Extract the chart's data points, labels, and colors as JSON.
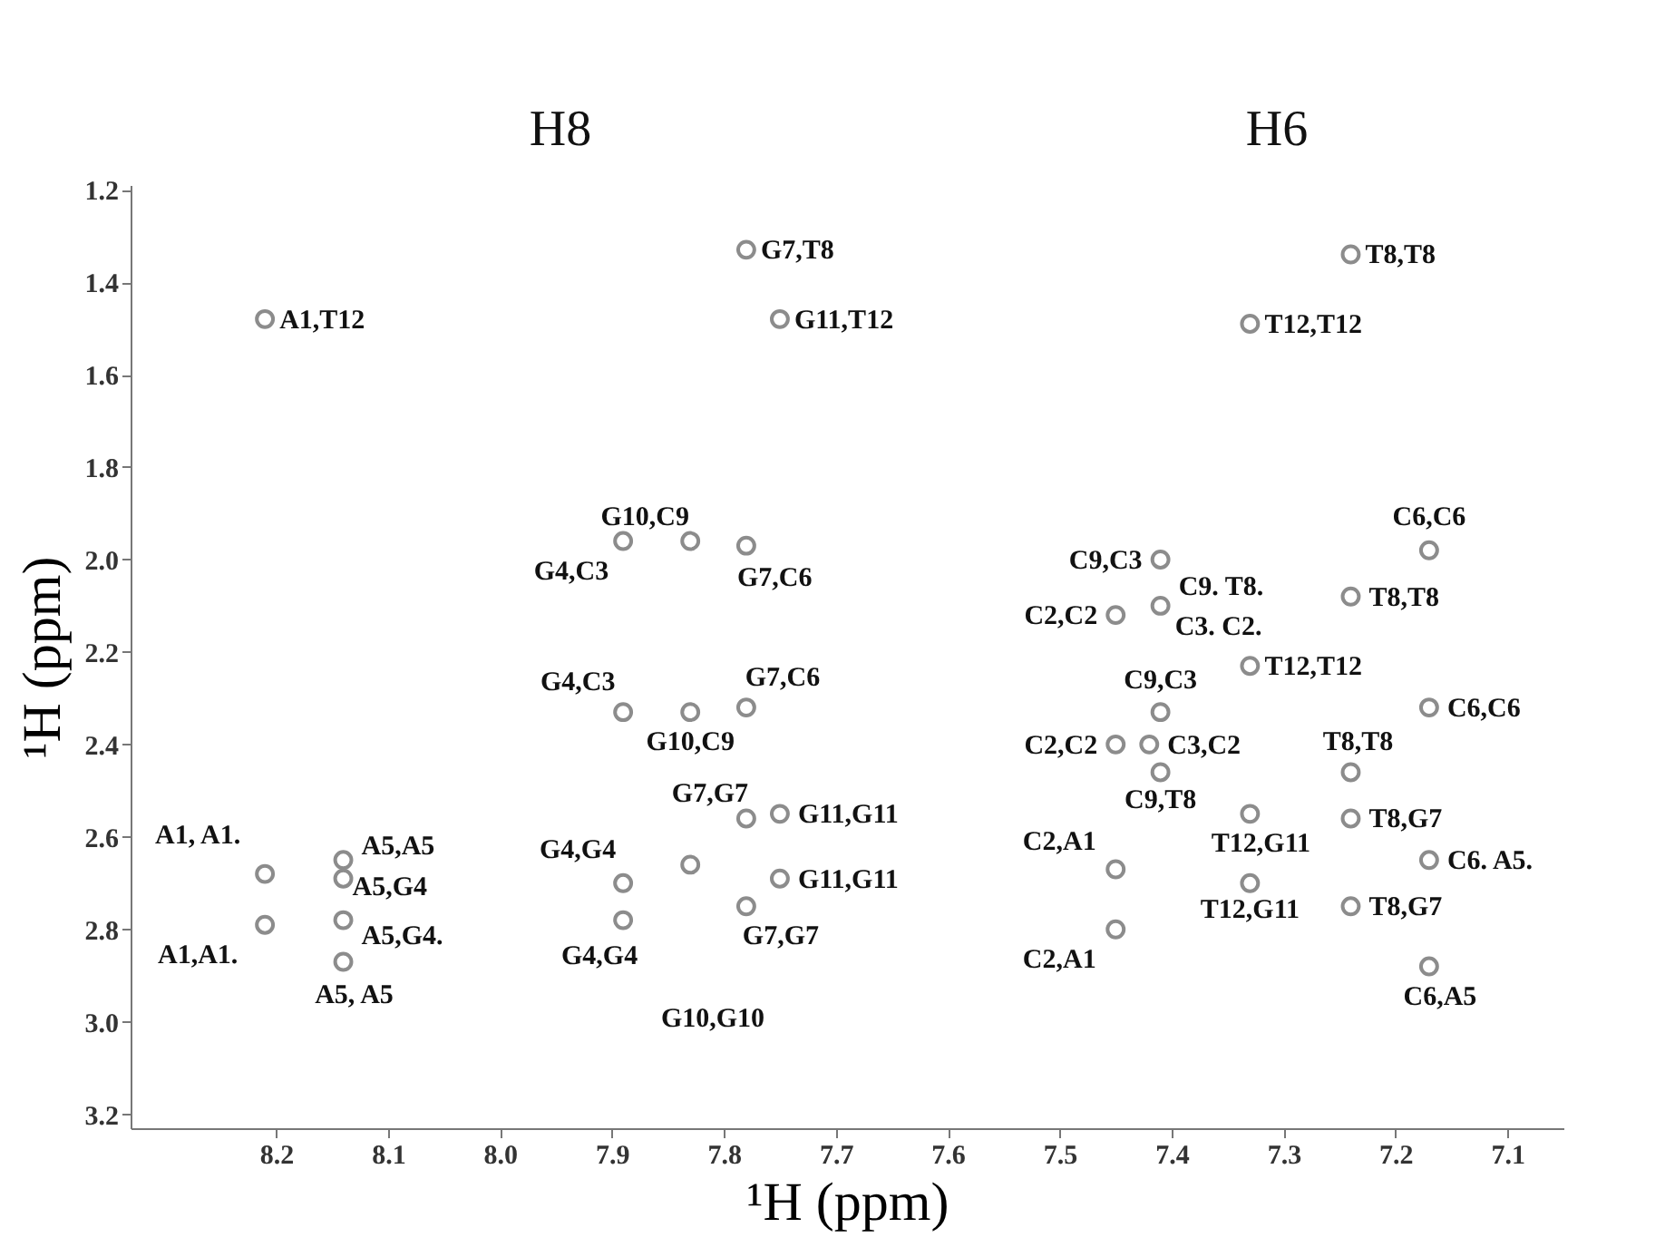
{
  "chart_data": {
    "type": "scatter",
    "xlabel": "¹H (ppm)",
    "ylabel": "¹H (ppm)",
    "xlim": [
      8.33,
      7.05
    ],
    "ylim": [
      3.23,
      1.19
    ],
    "xticks": [
      8.2,
      8.1,
      {
        "value": 8.0,
        "label": "8.0"
      },
      7.9,
      7.8,
      7.7,
      7.6,
      7.5,
      7.4,
      7.3,
      7.2,
      7.1
    ],
    "yticks": [
      1.2,
      1.4,
      1.6,
      1.8,
      {
        "value": 2.0,
        "label": "2.0"
      },
      2.2,
      2.4,
      2.6,
      2.8,
      {
        "value": 3.0,
        "label": "3.0"
      },
      3.2
    ],
    "grid": false,
    "marker": "circle",
    "series": [
      {
        "color": "#8c8c8c",
        "x": [
          8.21,
          7.78,
          7.75,
          7.89,
          7.83,
          7.78,
          7.24,
          7.33,
          7.41,
          7.17,
          7.45,
          7.41,
          7.24,
          7.33,
          7.17,
          7.41,
          7.45,
          7.42,
          7.41,
          7.24,
          7.33,
          7.24,
          7.17,
          7.45,
          7.33,
          7.24,
          7.45,
          7.17,
          7.89,
          7.83,
          7.78,
          7.78,
          7.75,
          8.21,
          8.14,
          8.14,
          7.89,
          7.83,
          7.75,
          8.21,
          8.14,
          7.89,
          7.78,
          8.14
        ],
        "values": [
          1.48,
          1.33,
          1.48,
          1.96,
          1.96,
          1.97,
          1.34,
          1.49,
          2.0,
          1.98,
          2.12,
          2.1,
          2.08,
          2.23,
          2.32,
          2.33,
          2.4,
          2.4,
          2.46,
          2.46,
          2.55,
          2.56,
          2.65,
          2.67,
          2.7,
          2.75,
          2.8,
          2.88,
          2.33,
          2.33,
          2.32,
          2.56,
          2.55,
          2.68,
          2.65,
          2.69,
          2.7,
          2.66,
          2.69,
          2.79,
          2.78,
          2.78,
          2.75,
          2.87
        ]
      }
    ],
    "annotations": [
      "H8",
      "H6",
      "G10,G10",
      {
        "text": "A1,T12",
        "x": 8.21,
        "y": 1.48
      },
      {
        "text": "G7,T8",
        "x": 7.78,
        "y": 1.33
      },
      {
        "text": "G11,T12",
        "x": 7.75,
        "y": 1.48
      },
      {
        "text": "T8,T8",
        "x": 7.24,
        "y": 1.34
      },
      {
        "text": "T12,T12",
        "x": 7.33,
        "y": 1.49
      },
      {
        "text": "G10,C9",
        "x": 7.83,
        "y": 1.96
      },
      {
        "text": "G4,C3",
        "x": 7.89,
        "y": 1.96
      },
      {
        "text": "G7,C6",
        "x": 7.78,
        "y": 1.97
      },
      {
        "text": "C9,C3",
        "x": 7.41,
        "y": 2.0
      },
      {
        "text": "C6,C6",
        "x": 7.17,
        "y": 1.98
      },
      {
        "text": "C2,C2",
        "x": 7.45,
        "y": 2.12
      },
      {
        "text": "C9. T8.",
        "x": 7.41,
        "y": 2.1
      },
      {
        "text": "C3. C2.",
        "x": 7.41,
        "y": 2.1
      },
      {
        "text": "T8,T8",
        "x": 7.24,
        "y": 2.08
      },
      {
        "text": "T12,T12",
        "x": 7.33,
        "y": 2.23
      },
      {
        "text": "G4,C3",
        "x": 7.89,
        "y": 2.33
      },
      {
        "text": "G7,C6",
        "x": 7.78,
        "y": 2.32
      },
      {
        "text": "G10,C9",
        "x": 7.83,
        "y": 2.33
      },
      {
        "text": "C9,C3",
        "x": 7.41,
        "y": 2.33
      },
      {
        "text": "C6,C6",
        "x": 7.17,
        "y": 2.32
      },
      {
        "text": "C2,C2",
        "x": 7.45,
        "y": 2.4
      },
      {
        "text": "C3,C2",
        "x": 7.42,
        "y": 2.4
      },
      {
        "text": "T8,T8",
        "x": 7.24,
        "y": 2.46
      },
      {
        "text": "C9,T8",
        "x": 7.41,
        "y": 2.46
      },
      {
        "text": "G7,G7",
        "x": 7.78,
        "y": 2.56
      },
      {
        "text": "G11,G11",
        "x": 7.75,
        "y": 2.55
      },
      {
        "text": "T8,G7",
        "x": 7.24,
        "y": 2.56
      },
      {
        "text": "A1, A1.",
        "x": 8.21,
        "y": 2.68
      },
      {
        "text": "A5,A5",
        "x": 8.14,
        "y": 2.65
      },
      {
        "text": "A5,G4",
        "x": 8.14,
        "y": 2.69
      },
      {
        "text": "A5,G4.",
        "x": 8.14,
        "y": 2.78
      },
      {
        "text": "A1,A1.",
        "x": 8.21,
        "y": 2.79
      },
      {
        "text": "A5, A5",
        "x": 8.14,
        "y": 2.87
      },
      {
        "text": "G4,G4",
        "x": 7.89,
        "y": 2.7
      },
      {
        "text": "G4,G4",
        "x": 7.89,
        "y": 2.78
      },
      {
        "text": "G11,G11",
        "x": 7.75,
        "y": 2.69
      },
      {
        "text": "G7,G7",
        "x": 7.78,
        "y": 2.75
      },
      {
        "text": "C2,A1",
        "x": 7.45,
        "y": 2.67
      },
      {
        "text": "T12,G11",
        "x": 7.33,
        "y": 2.55
      },
      {
        "text": "C6. A5.",
        "x": 7.17,
        "y": 2.65
      },
      {
        "text": "T12,G11",
        "x": 7.33,
        "y": 2.7
      },
      {
        "text": "T8,G7",
        "x": 7.24,
        "y": 2.75
      },
      {
        "text": "C2,A1",
        "x": 7.45,
        "y": 2.8
      },
      {
        "text": "C6,A5",
        "x": 7.17,
        "y": 2.88
      }
    ]
  }
}
